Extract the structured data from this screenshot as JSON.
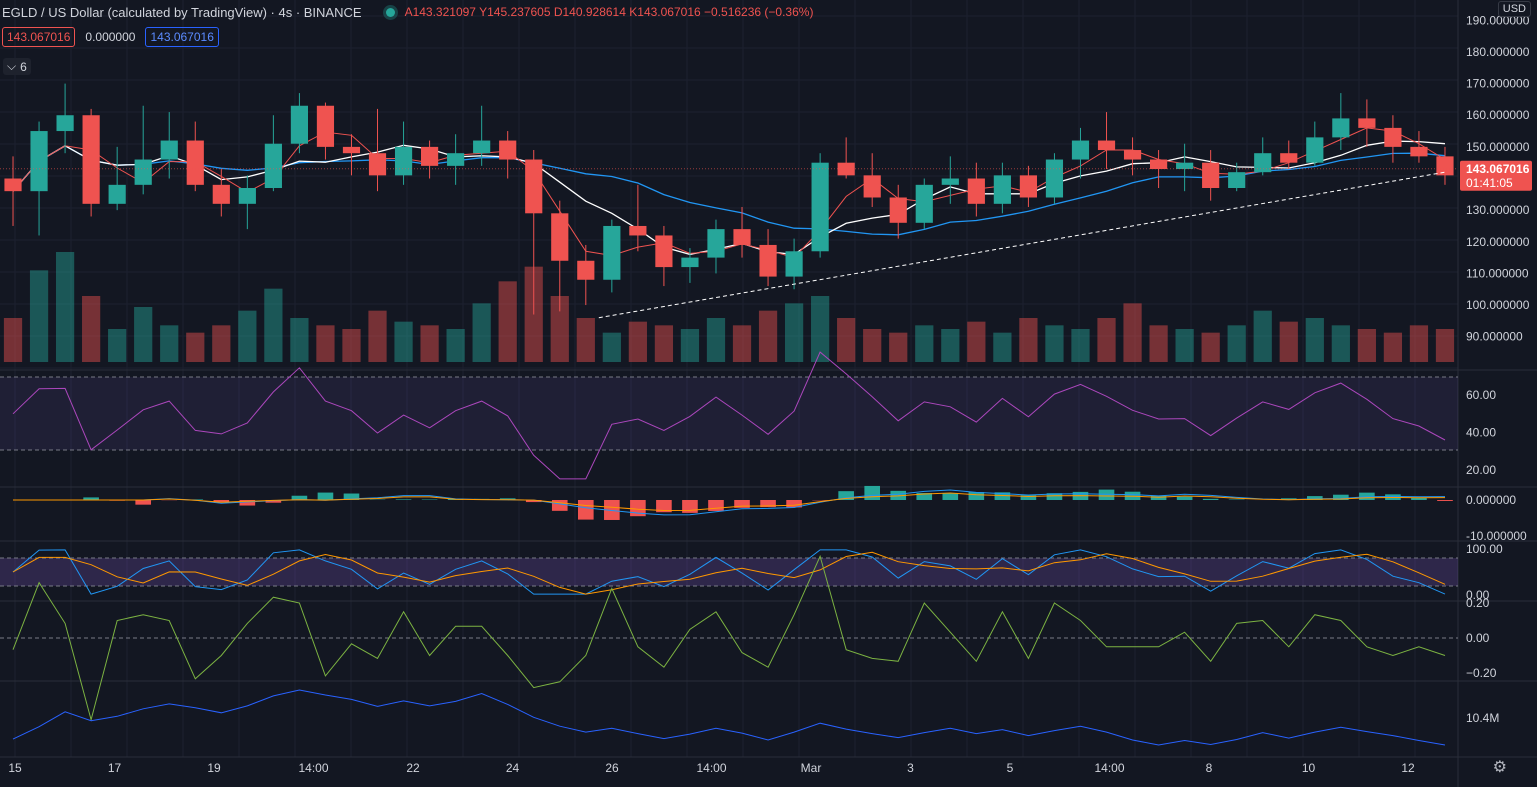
{
  "header": {
    "symbol": "EGLD / US Dollar (calculated by TradingView) · 4s · BINANCE",
    "open": "A143.321097",
    "high": "Y145.237605",
    "low": "D140.928614",
    "close": "K143.067016",
    "change": "−0.516236 (−0.36%)"
  },
  "indicator_values": {
    "ma1": "143.067016",
    "ma2": "0.000000",
    "ma3": "143.067016"
  },
  "collapse_count": "6",
  "currency": "USD",
  "price_axis": {
    "labels": [
      "190.000000",
      "180.000000",
      "170.000000",
      "160.000000",
      "150.000000",
      "140.000000",
      "130.000000",
      "120.000000",
      "110.000000",
      "100.000000",
      "90.000000"
    ]
  },
  "last_price": {
    "value": "143.067016",
    "countdown": "01:41:05"
  },
  "rsi_axis": [
    "60.00",
    "40.00",
    "20.00"
  ],
  "macd_axis": [
    "0.000000",
    "-10.000000"
  ],
  "stoch_axis": [
    "100.00",
    "0.00"
  ],
  "osc_axis": [
    "0.20",
    "0.00",
    "−0.20"
  ],
  "vol_axis": [
    "10.4M"
  ],
  "time_axis": [
    "15",
    "17",
    "19",
    "14:00",
    "22",
    "24",
    "26",
    "14:00",
    "Mar",
    "3",
    "5",
    "14:00",
    "8",
    "10",
    "12"
  ],
  "colors": {
    "up": "#26a69a",
    "down": "#ef5350",
    "ma_fast": "#ef5350",
    "ma_mid": "#ffffff",
    "ma_slow": "#2196f3",
    "rsi": "#ab47bc",
    "band": "#7e57c2",
    "macd": "#2196f3",
    "signal": "#ff9800",
    "osc": "#7cb342",
    "vol": "#2962ff"
  },
  "chart_data": {
    "type": "candlestick",
    "price_range": [
      82,
      192
    ],
    "candles": [
      [
        140,
        147,
        125,
        136
      ],
      [
        136,
        158,
        122,
        155
      ],
      [
        155,
        170,
        148,
        160
      ],
      [
        160,
        162,
        128,
        132
      ],
      [
        132,
        150,
        130,
        138
      ],
      [
        138,
        163,
        135,
        146
      ],
      [
        146,
        161,
        140,
        152
      ],
      [
        152,
        158,
        136,
        138
      ],
      [
        138,
        143,
        128,
        132
      ],
      [
        132,
        141,
        124,
        137
      ],
      [
        137,
        160,
        136,
        151
      ],
      [
        151,
        167,
        148,
        163
      ],
      [
        163,
        164,
        146,
        150
      ],
      [
        150,
        154,
        141,
        148
      ],
      [
        148,
        162,
        136,
        141
      ],
      [
        141,
        158,
        138,
        150
      ],
      [
        150,
        152,
        140,
        144
      ],
      [
        144,
        154,
        138,
        148
      ],
      [
        148,
        163,
        144,
        152
      ],
      [
        152,
        155,
        140,
        146
      ],
      [
        146,
        149,
        97,
        129
      ],
      [
        129,
        133,
        98,
        114
      ],
      [
        114,
        119,
        100,
        108
      ],
      [
        108,
        127,
        104,
        125
      ],
      [
        125,
        138,
        117,
        122
      ],
      [
        122,
        125,
        106,
        112
      ],
      [
        112,
        118,
        107,
        115
      ],
      [
        115,
        127,
        110,
        124
      ],
      [
        124,
        131,
        115,
        119
      ],
      [
        119,
        124,
        106,
        109
      ],
      [
        109,
        121,
        105,
        117
      ],
      [
        117,
        148,
        115,
        145
      ],
      [
        145,
        153,
        140,
        141
      ],
      [
        141,
        148,
        131,
        134
      ],
      [
        134,
        138,
        121,
        126
      ],
      [
        126,
        140,
        124,
        138
      ],
      [
        138,
        147,
        132,
        140
      ],
      [
        140,
        145,
        128,
        132
      ],
      [
        132,
        145,
        129,
        141
      ],
      [
        141,
        144,
        131,
        134
      ],
      [
        134,
        148,
        132,
        146
      ],
      [
        146,
        156,
        140,
        152
      ],
      [
        152,
        161,
        143,
        149
      ],
      [
        149,
        153,
        141,
        146
      ],
      [
        146,
        149,
        137,
        143
      ],
      [
        143,
        151,
        136,
        145
      ],
      [
        145,
        149,
        133,
        137
      ],
      [
        137,
        145,
        136,
        142
      ],
      [
        142,
        153,
        141,
        148
      ],
      [
        148,
        152,
        143,
        145
      ],
      [
        145,
        158,
        144,
        153
      ],
      [
        153,
        167,
        149,
        159
      ],
      [
        159,
        165,
        150,
        156
      ],
      [
        156,
        160,
        145,
        150
      ],
      [
        150,
        155,
        145,
        147
      ],
      [
        147,
        150,
        138,
        141
      ]
    ],
    "volume": [
      12,
      25,
      30,
      18,
      9,
      15,
      10,
      8,
      10,
      14,
      20,
      12,
      10,
      9,
      14,
      11,
      10,
      9,
      16,
      22,
      26,
      18,
      12,
      8,
      11,
      10,
      9,
      12,
      10,
      14,
      16,
      18,
      12,
      9,
      8,
      10,
      9,
      11,
      8,
      12,
      10,
      9,
      12,
      16,
      10,
      9,
      8,
      10,
      14,
      11,
      12,
      10,
      9,
      8,
      10,
      9
    ],
    "series": [
      {
        "name": "MA fast"
      },
      {
        "name": "MA mid"
      },
      {
        "name": "MA slow"
      }
    ],
    "trendline": {
      "from": [
        23,
        96
      ],
      "to": [
        55.5,
        142
      ]
    }
  }
}
